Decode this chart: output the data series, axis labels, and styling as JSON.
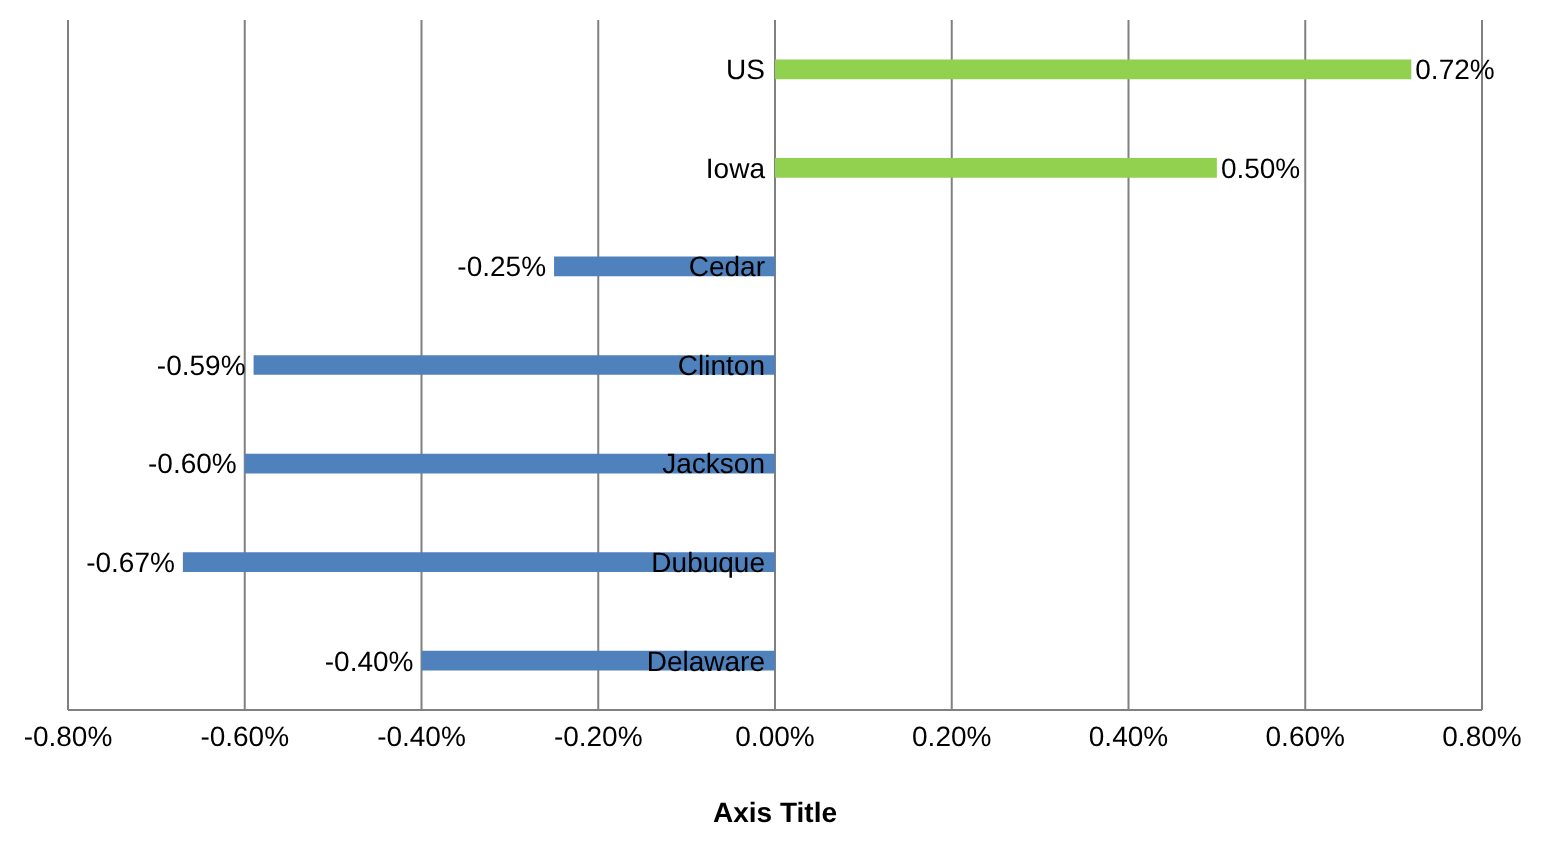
{
  "chart_data": {
    "type": "bar",
    "orientation": "horizontal",
    "xlabel": "Axis Title",
    "categories": [
      "US",
      "Iowa",
      "Cedar",
      "Clinton",
      "Jackson",
      "Dubuque",
      "Delaware"
    ],
    "values": [
      0.72,
      0.5,
      -0.25,
      -0.59,
      -0.6,
      -0.67,
      -0.4
    ],
    "value_labels": [
      "0.72%",
      "0.50%",
      "-0.25%",
      "-0.59%",
      "-0.60%",
      "-0.67%",
      "-0.40%"
    ],
    "colors": [
      "#92d050",
      "#92d050",
      "#4f81bd",
      "#4f81bd",
      "#4f81bd",
      "#4f81bd",
      "#4f81bd"
    ],
    "xlim": [
      -0.8,
      0.8
    ],
    "xticks": [
      {
        "value": -0.8,
        "label": "-0.80%"
      },
      {
        "value": -0.6,
        "label": "-0.60%"
      },
      {
        "value": -0.4,
        "label": "-0.40%"
      },
      {
        "value": -0.2,
        "label": "-0.20%"
      },
      {
        "value": 0,
        "label": "0.00%"
      },
      {
        "value": 0.2,
        "label": "0.20%"
      },
      {
        "value": 0.4,
        "label": "0.40%"
      },
      {
        "value": 0.6,
        "label": "0.60%"
      },
      {
        "value": 0.8,
        "label": "0.80%"
      }
    ],
    "grid": "x",
    "legend": false
  }
}
